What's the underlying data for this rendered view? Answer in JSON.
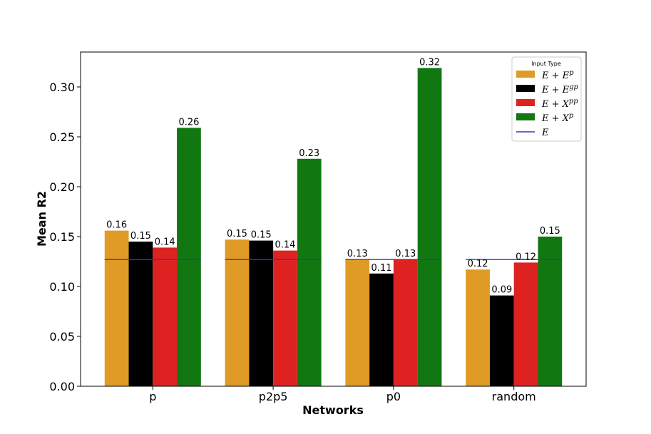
{
  "chart_data": {
    "type": "bar",
    "categories": [
      "p",
      "p2p5",
      "p0",
      "random"
    ],
    "series": [
      {
        "name": "E + E^p",
        "color": "#E09B26",
        "values": [
          0.156,
          0.147,
          0.127,
          0.117
        ]
      },
      {
        "name": "E + E^gp",
        "color": "#000000",
        "values": [
          0.145,
          0.146,
          0.113,
          0.091
        ]
      },
      {
        "name": "E + X^pp",
        "color": "#DE2222",
        "values": [
          0.139,
          0.136,
          0.127,
          0.124
        ]
      },
      {
        "name": "E + X^p",
        "color": "#117711",
        "values": [
          0.259,
          0.228,
          0.319,
          0.15
        ]
      }
    ],
    "data_labels": [
      [
        "0.16",
        "0.15",
        "0.13",
        "0.12"
      ],
      [
        "0.15",
        "0.15",
        "0.11",
        "0.09"
      ],
      [
        "0.14",
        "0.14",
        "0.13",
        "0.12"
      ],
      [
        "0.26",
        "0.23",
        "0.32",
        "0.15"
      ]
    ],
    "baseline": {
      "name": "E",
      "value": 0.127,
      "color": "#3333CC"
    },
    "xlabel": "Networks",
    "ylabel": "Mean R2",
    "ylim": [
      0,
      0.335
    ],
    "yticks": [
      0,
      0.05,
      0.1,
      0.15,
      0.2,
      0.25,
      0.3
    ],
    "ytick_labels": [
      "0.00",
      "0.05",
      "0.10",
      "0.15",
      "0.20",
      "0.25",
      "0.30"
    ],
    "legend": {
      "title": "Input Type",
      "placement": "top-right",
      "entries": [
        {
          "base": "E + E",
          "sup": "p"
        },
        {
          "base": "E + E",
          "sup": "gp"
        },
        {
          "base": "E + X",
          "sup": "pp"
        },
        {
          "base": "E + X",
          "sup": "p"
        },
        {
          "base": "E",
          "sup": ""
        }
      ]
    },
    "grid": false
  }
}
